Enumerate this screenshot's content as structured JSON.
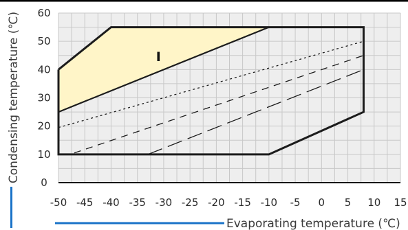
{
  "chart_data": {
    "type": "line",
    "title": "",
    "xlabel": "Evaporating temperature (℃)",
    "ylabel": "Condensing temperature (℃)",
    "xlim": [
      -50,
      15
    ],
    "ylim": [
      0,
      60
    ],
    "xticks": [
      "-50",
      "-45",
      "-40",
      "-35",
      "-30",
      "-25",
      "-20",
      "-15",
      "-10",
      "-5",
      "0",
      "5",
      "10",
      "15"
    ],
    "yticks": [
      "0",
      "10",
      "20",
      "30",
      "40",
      "50",
      "60"
    ],
    "grid": true,
    "colors": {
      "plot_background": "#eeeeee",
      "region_fill": "#fff5c8",
      "envelope": "#1c1c1c",
      "axis_line": "#000000",
      "grid": "#c8c8c8",
      "accent_line": "#1a73c8"
    },
    "envelope": {
      "name": "",
      "x": [
        -50,
        -40,
        8,
        8,
        -10,
        -50,
        -50
      ],
      "y": [
        40,
        55,
        55,
        25,
        10,
        10,
        40
      ]
    },
    "regions": [
      {
        "label": "I",
        "label_at": [
          -31,
          43
        ],
        "x": [
          -50,
          -40,
          -10,
          -50
        ],
        "y": [
          40,
          55,
          55,
          25
        ]
      }
    ],
    "series": [
      {
        "style": "solid",
        "x": [
          -50,
          -10
        ],
        "y": [
          25,
          55
        ]
      },
      {
        "style": "dotted",
        "x": [
          -50,
          8
        ],
        "y": [
          19.5,
          50
        ]
      },
      {
        "style": "dashed",
        "x": [
          -47,
          8
        ],
        "y": [
          10.5,
          45
        ]
      },
      {
        "style": "long-dashed",
        "x": [
          -33,
          8
        ],
        "y": [
          10,
          40
        ]
      }
    ]
  }
}
